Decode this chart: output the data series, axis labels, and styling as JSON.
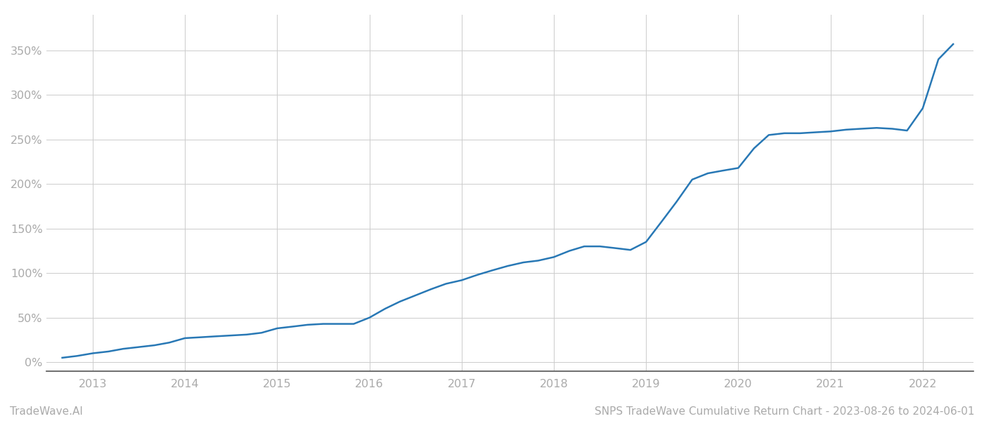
{
  "title": "SNPS TradeWave Cumulative Return Chart - 2023-08-26 to 2024-06-01",
  "watermark": "TradeWave.AI",
  "line_color": "#2878b5",
  "background_color": "#ffffff",
  "grid_color": "#cccccc",
  "x_years": [
    2013,
    2014,
    2015,
    2016,
    2017,
    2018,
    2019,
    2020,
    2021,
    2022
  ],
  "x_data": [
    2012.67,
    2012.83,
    2013.0,
    2013.17,
    2013.33,
    2013.5,
    2013.67,
    2013.83,
    2014.0,
    2014.17,
    2014.33,
    2014.5,
    2014.67,
    2014.83,
    2015.0,
    2015.17,
    2015.33,
    2015.5,
    2015.67,
    2015.83,
    2016.0,
    2016.17,
    2016.33,
    2016.5,
    2016.67,
    2016.83,
    2017.0,
    2017.17,
    2017.33,
    2017.5,
    2017.67,
    2017.83,
    2018.0,
    2018.17,
    2018.33,
    2018.5,
    2018.67,
    2018.83,
    2019.0,
    2019.17,
    2019.33,
    2019.5,
    2019.67,
    2019.83,
    2020.0,
    2020.17,
    2020.33,
    2020.5,
    2020.67,
    2020.83,
    2021.0,
    2021.17,
    2021.33,
    2021.5,
    2021.67,
    2021.83,
    2022.0,
    2022.17,
    2022.33
  ],
  "y_data": [
    5,
    7,
    10,
    12,
    15,
    17,
    19,
    22,
    27,
    28,
    29,
    30,
    31,
    33,
    38,
    40,
    42,
    43,
    43,
    43,
    50,
    60,
    68,
    75,
    82,
    88,
    92,
    98,
    103,
    108,
    112,
    114,
    118,
    125,
    130,
    130,
    128,
    126,
    135,
    158,
    180,
    205,
    212,
    215,
    218,
    240,
    255,
    257,
    257,
    258,
    259,
    261,
    262,
    263,
    262,
    260,
    285,
    340,
    357
  ],
  "ylim": [
    -10,
    390
  ],
  "yticks": [
    0,
    50,
    100,
    150,
    200,
    250,
    300,
    350
  ],
  "xlim": [
    2012.5,
    2022.55
  ],
  "line_width": 1.8,
  "title_fontsize": 11,
  "watermark_fontsize": 11,
  "tick_fontsize": 11.5,
  "tick_color": "#aaaaaa",
  "axis_color": "#555555",
  "title_color": "#555555"
}
